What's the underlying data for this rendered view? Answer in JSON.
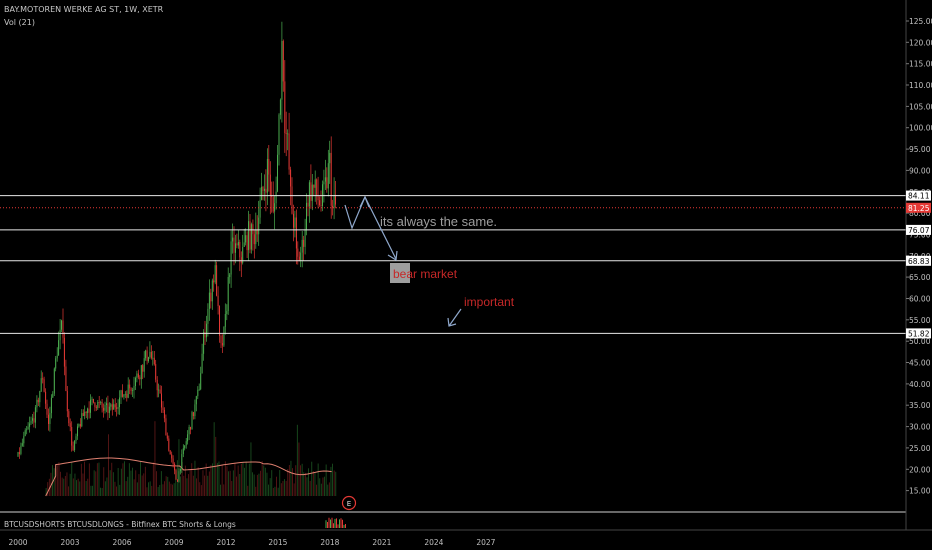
{
  "header": {
    "symbol_line": "BAY.MOTOREN WERKE AG ST, 1W, XETR",
    "volume_label": "Vol (21)"
  },
  "sub_pane_label": "BTCUSDSHORTS BTCUSDLONGS - Bitfinex BTC Shorts & Longs",
  "earnings_badge": "E",
  "colors": {
    "background": "#000000",
    "up_candle": "#4caf50",
    "down_candle": "#e53935",
    "volume_ma": "#e08070",
    "drawing": "#8fa8cc",
    "level_line": "#e8e8e8",
    "price_line": "#e53935",
    "price_tag": "#e53935",
    "annotation_red": "#c62828",
    "annotation_gray": "#9e9e9e"
  },
  "annotations": [
    {
      "text": "its always the same.",
      "color": "#9e9e9e"
    },
    {
      "text": "bear market",
      "color": "#c62828",
      "highlight": "#9e9e9e"
    },
    {
      "text": "important",
      "color": "#c62828"
    }
  ],
  "chart_data": {
    "type": "candlestick",
    "x_ticks": [
      "2000",
      "2003",
      "2006",
      "2009",
      "2012",
      "2015",
      "2018",
      "2021",
      "2024",
      "2027"
    ],
    "y_ticks": [
      "125.00",
      "120.00",
      "115.00",
      "110.00",
      "105.00",
      "100.00",
      "95.00",
      "90.00",
      "85.00",
      "80.00",
      "75.00",
      "70.00",
      "65.00",
      "60.00",
      "55.00",
      "50.00",
      "45.00",
      "40.00",
      "35.00",
      "30.00",
      "25.00",
      "20.00",
      "15.00"
    ],
    "y_range": [
      10,
      127
    ],
    "last_price": "81.25",
    "horizontal_levels": [
      "84.11",
      "76.07",
      "68.83",
      "51.82"
    ],
    "price_path": [
      [
        "2000-01",
        23
      ],
      [
        "2000-06",
        28
      ],
      [
        "2001-01",
        33
      ],
      [
        "2001-06",
        42
      ],
      [
        "2001-10",
        30
      ],
      [
        "2002-04",
        48
      ],
      [
        "2002-08",
        54
      ],
      [
        "2002-10",
        38
      ],
      [
        "2003-03",
        24
      ],
      [
        "2003-07",
        30
      ],
      [
        "2003-12",
        34
      ],
      [
        "2004-06",
        36
      ],
      [
        "2004-12",
        34
      ],
      [
        "2005-06",
        34
      ],
      [
        "2005-12",
        37
      ],
      [
        "2006-06",
        39
      ],
      [
        "2006-12",
        42
      ],
      [
        "2007-04",
        45
      ],
      [
        "2007-08",
        48
      ],
      [
        "2007-12",
        42
      ],
      [
        "2008-05",
        34
      ],
      [
        "2008-10",
        24
      ],
      [
        "2009-03",
        17
      ],
      [
        "2009-06",
        22
      ],
      [
        "2009-12",
        30
      ],
      [
        "2010-06",
        38
      ],
      [
        "2010-10",
        52
      ],
      [
        "2011-04",
        65
      ],
      [
        "2011-06",
        66
      ],
      [
        "2011-09",
        47
      ],
      [
        "2011-12",
        52
      ],
      [
        "2012-04",
        70
      ],
      [
        "2012-06",
        72
      ],
      [
        "2012-12",
        70
      ],
      [
        "2013-04",
        75
      ],
      [
        "2013-08",
        74
      ],
      [
        "2014-01",
        82
      ],
      [
        "2014-06",
        91
      ],
      [
        "2014-10",
        78
      ],
      [
        "2015-01",
        95
      ],
      [
        "2015-04",
        122
      ],
      [
        "2015-06",
        100
      ],
      [
        "2015-08",
        95
      ],
      [
        "2015-10",
        82
      ],
      [
        "2016-01",
        76
      ],
      [
        "2016-02",
        68
      ],
      [
        "2016-06",
        72
      ],
      [
        "2016-10",
        85
      ],
      [
        "2017-01",
        86
      ],
      [
        "2017-04",
        84
      ],
      [
        "2017-07",
        82
      ],
      [
        "2017-10",
        86
      ],
      [
        "2018-01",
        92
      ],
      [
        "2018-02",
        84
      ],
      [
        "2018-03",
        80
      ],
      [
        "2018-04",
        82
      ],
      [
        "2018-05",
        81.25
      ]
    ]
  }
}
